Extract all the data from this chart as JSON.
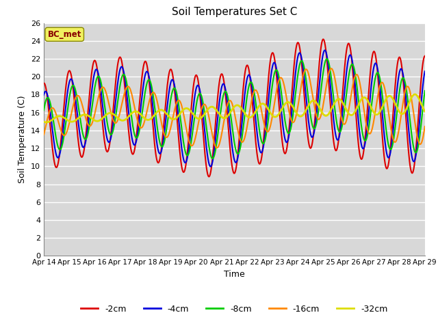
{
  "title": "Soil Temperatures Set C",
  "xlabel": "Time",
  "ylabel": "Soil Temperature (C)",
  "annotation": "BC_met",
  "ylim": [
    0,
    26
  ],
  "yticks": [
    0,
    2,
    4,
    6,
    8,
    10,
    12,
    14,
    16,
    18,
    20,
    22,
    24,
    26
  ],
  "xtick_labels": [
    "Apr 14",
    "Apr 15",
    "Apr 16",
    "Apr 17",
    "Apr 18",
    "Apr 19",
    "Apr 20",
    "Apr 21",
    "Apr 22",
    "Apr 23",
    "Apr 24",
    "Apr 25",
    "Apr 26",
    "Apr 27",
    "Apr 28",
    "Apr 29"
  ],
  "series": [
    {
      "label": "-2cm",
      "color": "#dd0000",
      "lw": 1.5
    },
    {
      "label": "-4cm",
      "color": "#0000dd",
      "lw": 1.5
    },
    {
      "label": "-8cm",
      "color": "#00cc00",
      "lw": 1.5
    },
    {
      "label": "-16cm",
      "color": "#ff8800",
      "lw": 1.5
    },
    {
      "label": "-32cm",
      "color": "#dddd00",
      "lw": 2.0
    }
  ],
  "fig_bg": "#ffffff",
  "plot_bg": "#d8d8d8",
  "grid_color": "#ffffff",
  "grid_lw": 1.0
}
